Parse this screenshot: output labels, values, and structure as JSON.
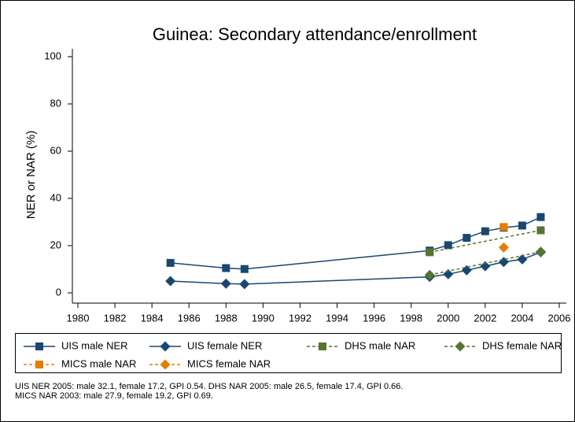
{
  "chart_data": {
    "type": "line",
    "title": "Guinea: Secondary attendance/enrollment",
    "y_label": "NER or NAR (%)",
    "xlim": [
      1980,
      2006
    ],
    "xticks": [
      1980,
      1982,
      1984,
      1986,
      1988,
      1990,
      1992,
      1994,
      1996,
      1998,
      2000,
      2002,
      2004,
      2006
    ],
    "ylim": [
      0,
      100
    ],
    "yticks": [
      0,
      20,
      40,
      60,
      80,
      100
    ],
    "grid": false,
    "series": [
      {
        "name": "UIS male NER",
        "color": "#1a476f",
        "marker": "square",
        "dashed": false,
        "x": [
          1985,
          1988,
          1989,
          1999,
          2000,
          2001,
          2002,
          2003,
          2004,
          2005
        ],
        "values": [
          12.7,
          10.5,
          10.1,
          17.9,
          20.2,
          23.3,
          26.1,
          27.6,
          28.5,
          32.1
        ]
      },
      {
        "name": "UIS female NER",
        "color": "#1a476f",
        "marker": "diamond",
        "dashed": false,
        "x": [
          1985,
          1988,
          1989,
          1999,
          2000,
          2001,
          2002,
          2003,
          2004,
          2005
        ],
        "values": [
          5.0,
          3.9,
          3.7,
          6.8,
          7.9,
          9.6,
          11.3,
          13.1,
          14.2,
          17.2
        ]
      },
      {
        "name": "DHS male NAR",
        "color": "#55752f",
        "marker": "square",
        "dashed": true,
        "x": [
          1999,
          2005
        ],
        "values": [
          17.2,
          26.5
        ]
      },
      {
        "name": "DHS female NAR",
        "color": "#55752f",
        "marker": "diamond",
        "dashed": true,
        "x": [
          1999,
          2005
        ],
        "values": [
          7.6,
          17.4
        ]
      },
      {
        "name": "MICS male NAR",
        "color": "#e37e00",
        "marker": "square",
        "dashed": true,
        "x": [
          2003
        ],
        "values": [
          27.9
        ]
      },
      {
        "name": "MICS female NAR",
        "color": "#e37e00",
        "marker": "diamond",
        "dashed": true,
        "x": [
          2003
        ],
        "values": [
          19.2
        ]
      }
    ],
    "notes": [
      "UIS NER 2005: male 32.1, female 17.2, GPI 0.54. DHS NAR 2005: male 26.5, female 17.4, GPI 0.66.",
      "MICS NAR 2003: male 27.9, female 19.2, GPI 0.69."
    ]
  }
}
